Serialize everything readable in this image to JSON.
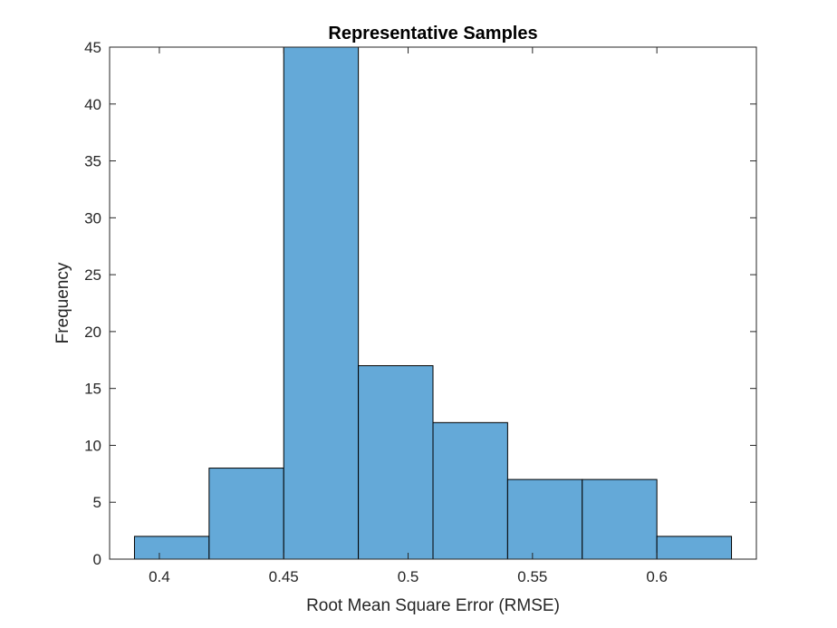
{
  "chart_data": {
    "type": "bar",
    "title": "Representative Samples",
    "xlabel": "Root Mean Square Error (RMSE)",
    "ylabel": "Frequency",
    "bin_edges": [
      0.39,
      0.42,
      0.45,
      0.48,
      0.51,
      0.54,
      0.57,
      0.6,
      0.63
    ],
    "values": [
      2,
      8,
      45,
      17,
      12,
      7,
      7,
      2
    ],
    "xlim": [
      0.38,
      0.64
    ],
    "ylim": [
      0,
      45
    ],
    "xticks": [
      0.4,
      0.45,
      0.5,
      0.55,
      0.6
    ],
    "xtick_labels": [
      "0.4",
      "0.45",
      "0.5",
      "0.55",
      "0.6"
    ],
    "yticks": [
      0,
      5,
      10,
      15,
      20,
      25,
      30,
      35,
      40,
      45
    ],
    "ytick_labels": [
      "0",
      "5",
      "10",
      "15",
      "20",
      "25",
      "30",
      "35",
      "40",
      "45"
    ],
    "bar_color": "#64A9D8",
    "edge_color": "#000000",
    "grid": false,
    "legend": "none"
  }
}
